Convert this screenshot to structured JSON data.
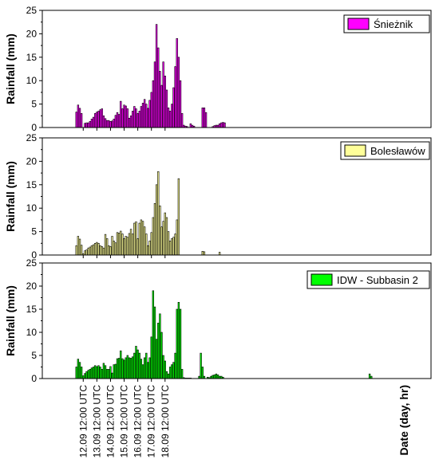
{
  "chart_data": [
    {
      "type": "bar",
      "legend": "Śnieżnik",
      "color": "#ff00ff",
      "ylabel": "Rainfall (mm)",
      "ylim": [
        0,
        25
      ],
      "yticks": [
        0,
        5,
        10,
        15,
        20,
        25
      ],
      "x_start_hours": 0,
      "x_step_hours": 3,
      "values": [
        3.3,
        4.8,
        4.1,
        3.0,
        0.0,
        0.9,
        1.0,
        1.0,
        1.3,
        1.8,
        2.2,
        3.0,
        3.3,
        3.5,
        3.8,
        4.0,
        2.5,
        1.9,
        1.5,
        1.5,
        1.3,
        1.4,
        1.8,
        2.6,
        3.2,
        2.8,
        5.6,
        4.0,
        4.8,
        4.6,
        4.0,
        2.0,
        2.5,
        3.5,
        4.5,
        4.0,
        3.0,
        3.5,
        4.5,
        5.2,
        6.0,
        5.0,
        4.1,
        5.8,
        7.5,
        10.0,
        14.0,
        22.0,
        17.0,
        12.0,
        9.0,
        14.0,
        11.0,
        8.0,
        4.2,
        3.5,
        5.0,
        8.5,
        13.0,
        19.0,
        15.0,
        10.0,
        3.0,
        0.5,
        0.3,
        0.2,
        0.0,
        0.8,
        0.5,
        0.3,
        0.0,
        0.0,
        0.0,
        0.0,
        4.2,
        4.2,
        3.2,
        0.0,
        0.0,
        0.0,
        0.2,
        0.4,
        0.5,
        0.5,
        0.8,
        1.0,
        1.1,
        1.0
      ]
    },
    {
      "type": "bar",
      "legend": "Bolesławów",
      "color": "#ffff99",
      "ylabel": "Rainfall (mm)",
      "ylim": [
        0,
        25
      ],
      "yticks": [
        0,
        5,
        10,
        15,
        20,
        25
      ],
      "x_start_hours": 0,
      "x_step_hours": 3,
      "values": [
        2.0,
        4.0,
        3.4,
        2.1,
        0.3,
        0.9,
        1.1,
        1.5,
        1.7,
        2.0,
        2.2,
        2.5,
        2.7,
        2.5,
        2.0,
        1.8,
        1.5,
        4.4,
        3.5,
        2.0,
        1.8,
        4.0,
        3.0,
        2.6,
        4.8,
        4.7,
        5.1,
        4.5,
        3.5,
        4.0,
        3.8,
        4.6,
        5.5,
        4.5,
        6.8,
        7.1,
        3.5,
        6.8,
        7.5,
        7.2,
        6.0,
        4.5,
        2.0,
        3.0,
        4.8,
        8.0,
        11.0,
        15.0,
        17.8,
        10.5,
        6.0,
        7.2,
        9.0,
        8.0,
        5.0,
        3.0,
        3.5,
        3.8,
        4.5,
        7.5,
        16.3,
        0.0,
        0.0,
        0.0,
        0.0,
        0.0,
        0.0,
        0.0,
        0.0,
        0.0,
        0.0,
        0.0,
        0.0,
        0.0,
        0.8,
        0.7,
        0.0,
        0.0,
        0.0,
        0.0,
        0.0,
        0.0,
        0.0,
        0.0,
        0.6,
        0.0,
        0.0,
        0.0
      ]
    },
    {
      "type": "bar",
      "legend": "IDW - Subbasin 2",
      "color": "#00ff00",
      "ylabel": "Rainfall (mm)",
      "ylim": [
        0,
        25
      ],
      "yticks": [
        0,
        5,
        10,
        15,
        20,
        25
      ],
      "x_start_hours": 0,
      "x_step_hours": 3,
      "values": [
        2.5,
        4.2,
        3.5,
        2.5,
        0.6,
        1.1,
        1.5,
        1.8,
        2.0,
        2.3,
        2.5,
        2.8,
        2.6,
        2.8,
        2.5,
        2.0,
        3.3,
        2.8,
        2.0,
        2.0,
        2.6,
        1.2,
        3.0,
        3.1,
        4.3,
        4.4,
        6.0,
        4.3,
        4.0,
        4.5,
        5.0,
        4.5,
        4.4,
        4.7,
        5.5,
        7.0,
        6.2,
        5.5,
        4.2,
        3.0,
        4.5,
        5.5,
        3.5,
        4.5,
        9.0,
        19.0,
        15.5,
        8.5,
        12.0,
        14.0,
        10.0,
        5.0,
        3.8,
        1.5,
        1.0,
        2.5,
        3.0,
        3.5,
        5.5,
        15.0,
        16.5,
        15.0,
        2.0,
        0.2,
        0.1,
        0.1,
        0.1,
        0.1,
        0.0,
        0.0,
        0.0,
        0.0,
        0.5,
        5.5,
        2.5,
        0.5,
        0.0,
        0.3,
        0.2,
        0.5,
        0.7,
        0.8,
        1.0,
        0.8,
        0.5,
        0.5,
        0.3,
        0.0
      ]
    }
  ],
  "x_axis": {
    "title": "Date (day, hr)",
    "ticks": [
      "12.09 12:00 UTC",
      "13.09 12:00 UTC",
      "14.09 12:00 UTC",
      "15.09 12:00 UTC",
      "16.09 12:00 UTC",
      "17.09 12:00 UTC",
      "18.09 12:00 UTC"
    ],
    "first_tick_hours": 12,
    "tick_step_hours": 24
  },
  "extra_bars": {
    "panel": 2,
    "items": [
      {
        "hours": 516,
        "value": 1.0
      },
      {
        "hours": 519,
        "value": 0.5
      }
    ]
  }
}
